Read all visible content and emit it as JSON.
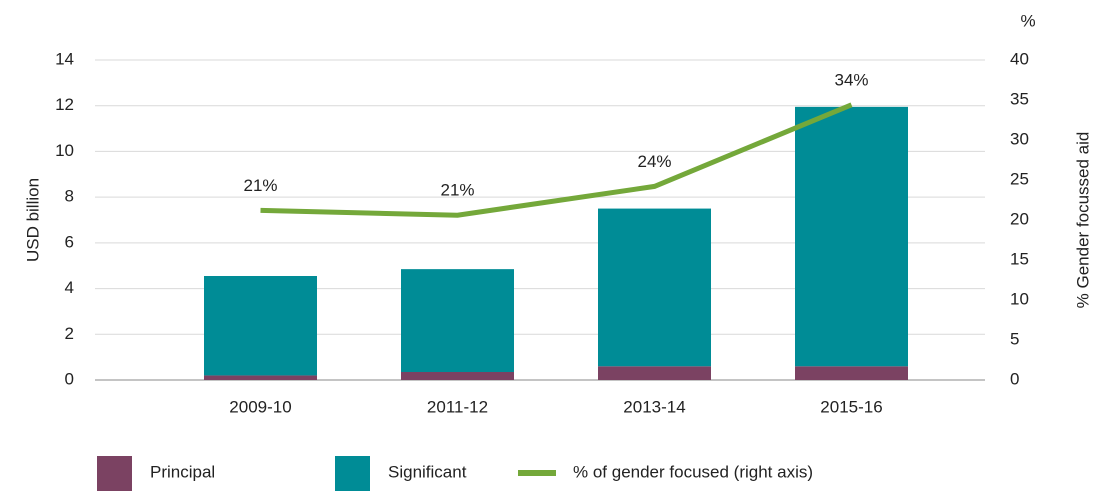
{
  "chart_data": {
    "type": "bar",
    "categories": [
      "2009-10",
      "2011-12",
      "2013-14",
      "2015-16"
    ],
    "series": [
      {
        "name": "Principal",
        "color": "#7b4262",
        "values": [
          0.2,
          0.35,
          0.6,
          0.6
        ]
      },
      {
        "name": "Significant",
        "color": "#008c96",
        "values": [
          4.35,
          4.5,
          6.9,
          11.35
        ]
      },
      {
        "name": "% of gender focused (right axis)",
        "color": "#74a83a",
        "axis": "y2",
        "type": "line",
        "values": [
          21.2,
          20.6,
          24.2,
          34.4
        ],
        "value_labels": [
          "21%",
          "21%",
          "24%",
          "34%"
        ]
      }
    ],
    "ylabel": "USD billion",
    "y2label": "% Gender focussed aid",
    "y2unit": "%",
    "ylim": [
      0,
      14
    ],
    "yticks": [
      0,
      2,
      4,
      6,
      8,
      10,
      12,
      14
    ],
    "y2lim": [
      0,
      40
    ],
    "y2ticks": [
      0,
      5,
      10,
      15,
      20,
      25,
      30,
      35,
      40
    ],
    "grid": true,
    "stacked": true,
    "legend": "bottom"
  }
}
